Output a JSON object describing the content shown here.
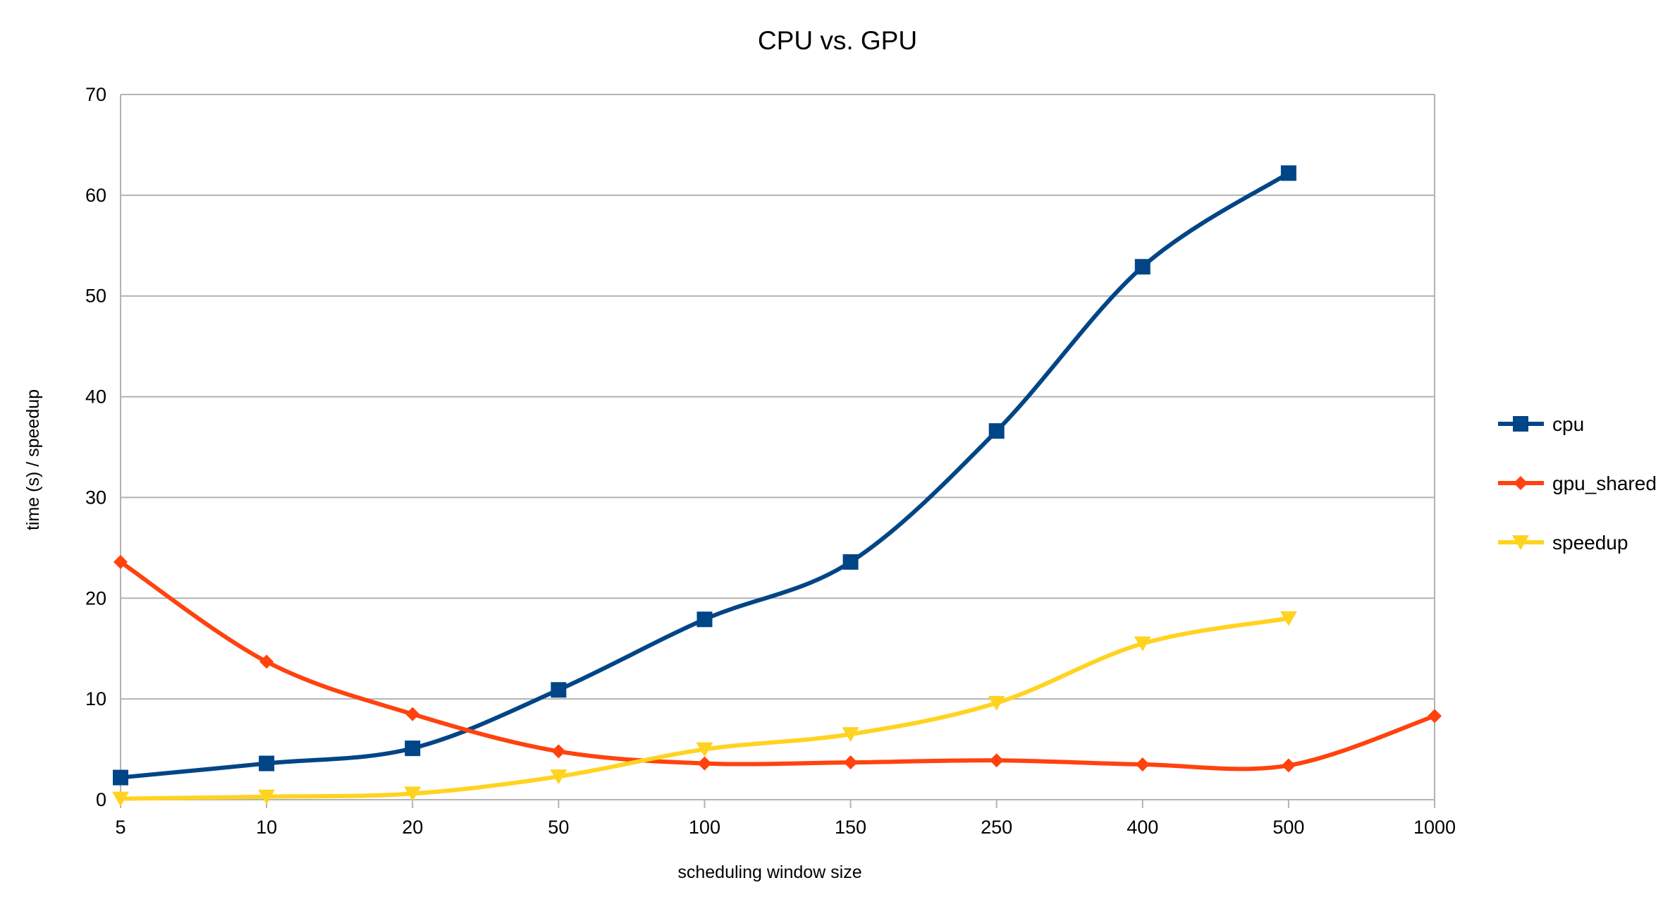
{
  "chart_data": {
    "type": "line",
    "title": "CPU vs. GPU",
    "xlabel": "scheduling window size",
    "ylabel": "time (s)  / speedup",
    "categories": [
      "5",
      "10",
      "20",
      "50",
      "100",
      "150",
      "250",
      "400",
      "500",
      "1000"
    ],
    "ylim": [
      0,
      70
    ],
    "yticks": [
      "0",
      "10",
      "20",
      "30",
      "40",
      "50",
      "60",
      "70"
    ],
    "grid": true,
    "legend_position": "right",
    "series": [
      {
        "name": "cpu",
        "color": "#004586",
        "marker": "square",
        "values": [
          2.2,
          3.6,
          5.1,
          10.9,
          17.9,
          23.6,
          36.6,
          52.9,
          62.2,
          null
        ]
      },
      {
        "name": "gpu_shared",
        "color": "#ff420e",
        "marker": "diamond",
        "values": [
          23.6,
          13.7,
          8.5,
          4.8,
          3.6,
          3.7,
          3.9,
          3.5,
          3.4,
          8.3
        ]
      },
      {
        "name": "speedup",
        "color": "#ffd320",
        "marker": "triangle-down",
        "values": [
          0.1,
          0.3,
          0.6,
          2.3,
          5.0,
          6.5,
          9.6,
          15.5,
          18.0,
          null
        ]
      }
    ]
  }
}
